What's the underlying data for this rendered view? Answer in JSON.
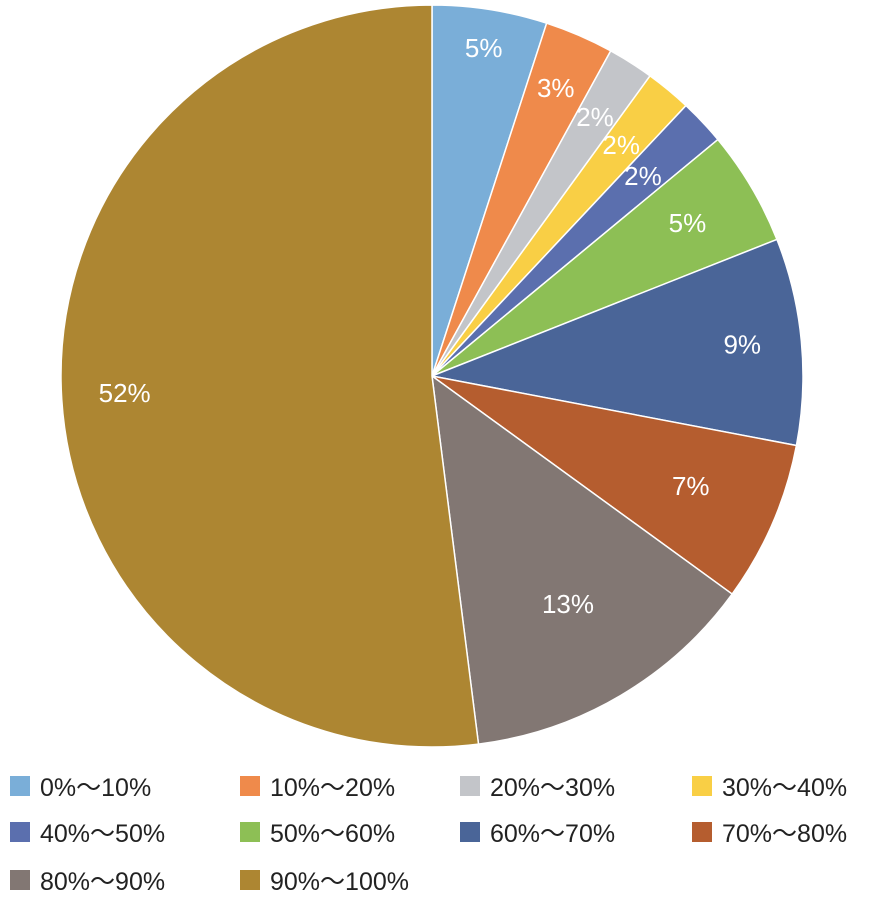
{
  "chart_data": {
    "type": "pie",
    "categories": [
      "0%～10%",
      "10%～20%",
      "20%～30%",
      "30%～40%",
      "40%～50%",
      "50%～60%",
      "60%～70%",
      "70%～80%",
      "80%～90%",
      "90%～100%"
    ],
    "values": [
      5,
      3,
      2,
      2,
      2,
      5,
      9,
      7,
      13,
      52
    ],
    "data_labels": [
      "5%",
      "3%",
      "2%",
      "2%",
      "2%",
      "5%",
      "9%",
      "7%",
      "13%",
      "52%"
    ],
    "colors": [
      "#7aaed8",
      "#ef8a4b",
      "#c3c5c9",
      "#f9cf45",
      "#5b6fae",
      "#8dbf55",
      "#4a6598",
      "#b55d2f",
      "#827773",
      "#ad8632"
    ],
    "start_angle": "12 o'clock",
    "direction": "clockwise",
    "legend_position": "bottom"
  }
}
